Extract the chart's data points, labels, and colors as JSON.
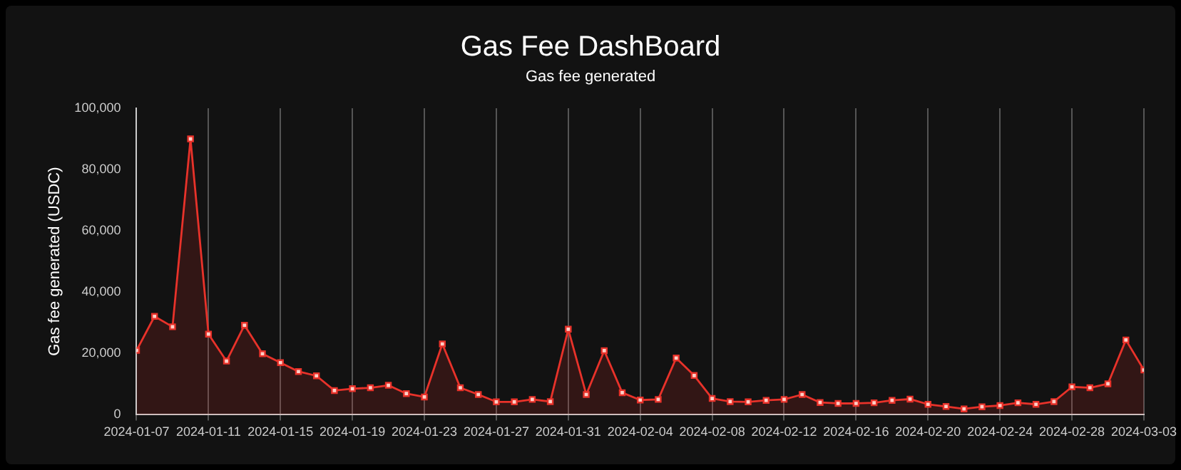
{
  "chart_data": {
    "type": "area",
    "title": "Gas Fee DashBoard",
    "subtitle": "Gas fee generated",
    "ylabel": "Gas fee generated (USDC)",
    "x": [
      "2024-01-07",
      "2024-01-08",
      "2024-01-09",
      "2024-01-10",
      "2024-01-11",
      "2024-01-12",
      "2024-01-13",
      "2024-01-14",
      "2024-01-15",
      "2024-01-16",
      "2024-01-17",
      "2024-01-18",
      "2024-01-19",
      "2024-01-20",
      "2024-01-21",
      "2024-01-22",
      "2024-01-23",
      "2024-01-24",
      "2024-01-25",
      "2024-01-26",
      "2024-01-27",
      "2024-01-28",
      "2024-01-29",
      "2024-01-30",
      "2024-01-31",
      "2024-02-01",
      "2024-02-02",
      "2024-02-03",
      "2024-02-04",
      "2024-02-05",
      "2024-02-06",
      "2024-02-07",
      "2024-02-08",
      "2024-02-09",
      "2024-02-10",
      "2024-02-11",
      "2024-02-12",
      "2024-02-13",
      "2024-02-14",
      "2024-02-15",
      "2024-02-16",
      "2024-02-17",
      "2024-02-18",
      "2024-02-19",
      "2024-02-20",
      "2024-02-21",
      "2024-02-22",
      "2024-02-23",
      "2024-02-24",
      "2024-02-25",
      "2024-02-26",
      "2024-02-27",
      "2024-02-28",
      "2024-02-29",
      "2024-03-01",
      "2024-03-02",
      "2024-03-03"
    ],
    "series": [
      {
        "color": "#e8322a",
        "values": [
          21000,
          32100,
          28700,
          90000,
          26300,
          17500,
          29200,
          19900,
          17000,
          14100,
          12700,
          7900,
          8500,
          8800,
          9600,
          6900,
          5800,
          23100,
          8800,
          6600,
          4200,
          4200,
          5000,
          4300,
          27900,
          6600,
          20900,
          7200,
          4800,
          5000,
          18500,
          12800,
          5300,
          4300,
          4200,
          4700,
          5000,
          6600,
          4000,
          3700,
          3700,
          3900,
          4700,
          5100,
          3400,
          2700,
          1900,
          2600,
          3000,
          3900,
          3400,
          4300,
          9100,
          8800,
          10100,
          24400,
          14600
        ]
      }
    ],
    "xlim": [
      "2024-01-07",
      "2024-03-03"
    ],
    "xticks": [
      "2024-01-07",
      "2024-01-11",
      "2024-01-15",
      "2024-01-19",
      "2024-01-23",
      "2024-01-27",
      "2024-01-31",
      "2024-02-04",
      "2024-02-08",
      "2024-02-12",
      "2024-02-16",
      "2024-02-20",
      "2024-02-24",
      "2024-02-28",
      "2024-03-03"
    ],
    "ylim": [
      0,
      100000
    ],
    "yticks": [
      0,
      {
        "value": 20000,
        "label": "20,000"
      },
      {
        "value": 40000,
        "label": "40,000"
      },
      {
        "value": 60000,
        "label": "60,000"
      },
      {
        "value": 80000,
        "label": "80,000"
      },
      {
        "value": 100000,
        "label": "100,000"
      }
    ],
    "grid": "x",
    "marker": "square",
    "line_style": "solid"
  }
}
